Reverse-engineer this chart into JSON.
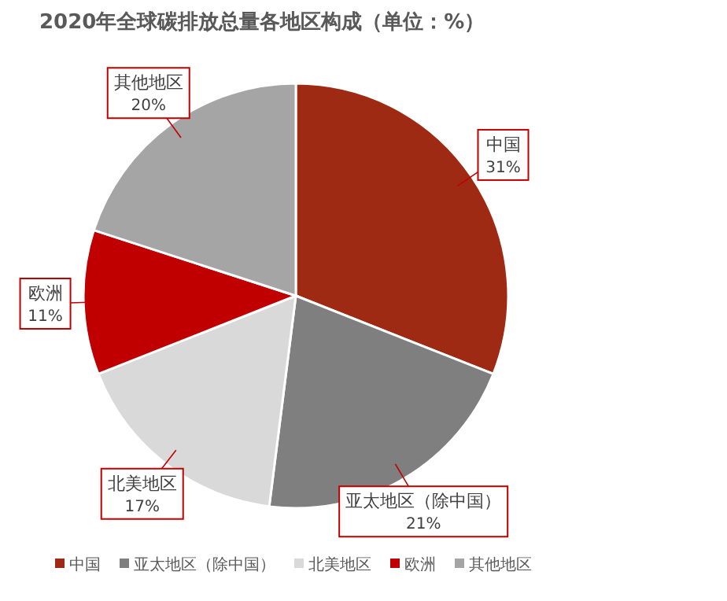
{
  "chart_data": {
    "type": "pie",
    "title": "2020年全球碳排放总量各地区构成（单位：%）",
    "categories": [
      "中国",
      "亚太地区（除中国）",
      "北美地区",
      "欧洲",
      "其他地区"
    ],
    "values": [
      31,
      21,
      17,
      11,
      20
    ],
    "value_labels": [
      "31%",
      "21%",
      "17%",
      "11%",
      "20%"
    ],
    "colors": [
      "#9e2a14",
      "#7f7f7f",
      "#d9d9d9",
      "#c00000",
      "#a5a5a5"
    ],
    "legend": "bottom"
  }
}
